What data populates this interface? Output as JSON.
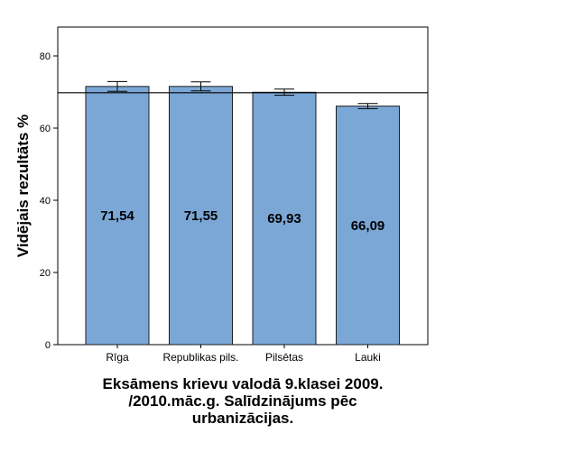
{
  "chart_data": {
    "type": "bar",
    "categories": [
      "Rīga",
      "Republikas pils.",
      "Pilsētas",
      "Lauki"
    ],
    "values": [
      71.54,
      71.55,
      69.93,
      66.09
    ],
    "value_labels": [
      "71,54",
      "71,55",
      "69,93",
      "66,09"
    ],
    "error_bars": [
      {
        "low": 70.2,
        "high": 72.9
      },
      {
        "low": 70.3,
        "high": 72.8
      },
      {
        "low": 69.1,
        "high": 70.8
      },
      {
        "low": 65.4,
        "high": 66.8
      }
    ],
    "reference_line": 69.8,
    "ylim": [
      0,
      88
    ],
    "yticks": [
      0,
      20,
      40,
      60,
      80
    ],
    "ylabel": "Vidējais rezultāts %",
    "xlabel": "",
    "title_lines": [
      "Eksāmens krievu valodā 9.klasei 2009.",
      "/2010.māc.g. Salīdzinājums pēc",
      "urbanizācijas."
    ],
    "grid": false,
    "legend": "none",
    "colors": {
      "bar_fill": "#7BA7D6",
      "bar_stroke": "#1E1E1E",
      "axis": "#000000",
      "reference_line": "#000000"
    }
  }
}
